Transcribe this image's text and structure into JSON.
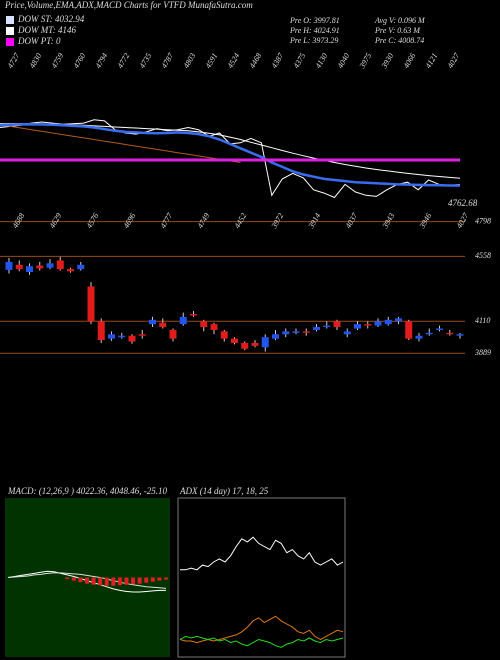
{
  "header": {
    "title": "Price,Volume,EMA,ADX,MACD Charts for VTFD MunafaSutra.com",
    "legend": [
      {
        "text": "DOW ST: 4032.94",
        "color": "#d8e4ff"
      },
      {
        "text": "DOW MT: 4146",
        "color": "#ffffff"
      },
      {
        "text": "DOW PT: 0",
        "color": "#ff00ff"
      }
    ],
    "stats": [
      "Pre O: 3997.81",
      "Avg V: 0.096 M",
      "Pre H: 4024.91",
      "Pre V: 0.63 M",
      "Pre L: 3973.29",
      "Pre C: 4008.74"
    ]
  },
  "chart_data": [
    {
      "type": "line",
      "ylim": [
        3720,
        5320
      ],
      "annotations": [
        "4727",
        "4830",
        "4759",
        "4760",
        "4794",
        "4772",
        "4735",
        "4787",
        "4803",
        "4591",
        "4524",
        "4468",
        "4387",
        "4375",
        "4130",
        "4040",
        "3975",
        "3930",
        "4066",
        "4121",
        "4027"
      ],
      "label": "4762.68",
      "hline": {
        "value": 4223,
        "color": "#e020e0"
      },
      "series": [
        {
          "color": "#ffffff",
          "values": [
            4520,
            4530,
            4540,
            4560,
            4570,
            4560,
            4550,
            4555,
            4560,
            4590,
            4580,
            4500,
            4470,
            4460,
            4480,
            4510,
            4490,
            4500,
            4520,
            4500,
            4440,
            4470,
            4370,
            4380,
            4420,
            4380,
            3900,
            4050,
            4100,
            4060,
            3950,
            3920,
            3880,
            4000,
            3930,
            3900,
            3890,
            3950,
            4000,
            4020,
            3950,
            4040,
            4000,
            3990,
            4000
          ]
        },
        {
          "color": "#ffffff",
          "values": [
            4555,
            4556,
            4556,
            4555,
            4553,
            4550,
            4547,
            4544,
            4540,
            4535,
            4530,
            4525,
            4520,
            4515,
            4510,
            4505,
            4500,
            4495,
            4490,
            4480,
            4468,
            4452,
            4432,
            4410,
            4385,
            4360,
            4335,
            4310,
            4285,
            4262,
            4240,
            4220,
            4200,
            4182,
            4166,
            4150,
            4136,
            4124,
            4112,
            4100,
            4090,
            4080,
            4072,
            4064,
            4056
          ]
        },
        {
          "color": "#b05a20",
          "values": [
            4543,
            4530,
            4515,
            4500,
            4485,
            4470,
            4455,
            4440,
            4425,
            4410,
            4395,
            4380,
            4365,
            4350,
            4335,
            4320,
            4305,
            4290,
            4275,
            4260,
            4245,
            4230,
            4215,
            4200,
            null,
            null,
            null,
            null,
            null,
            null,
            null,
            null,
            null,
            null,
            null,
            null,
            null,
            null,
            null,
            null,
            null,
            null,
            null,
            null,
            null
          ]
        },
        {
          "color": "#3a6cf0",
          "values": [
            4540,
            4545,
            4548,
            4550,
            4548,
            4545,
            4540,
            4535,
            4530,
            4520,
            4505,
            4490,
            4480,
            4475,
            4470,
            4468,
            4470,
            4475,
            4470,
            4460,
            4440,
            4410,
            4370,
            4330,
            4290,
            4250,
            4200,
            4160,
            4120,
            4090,
            4070,
            4050,
            4040,
            4030,
            4020,
            4015,
            4010,
            4005,
            4000,
            3998,
            3995,
            3993,
            3992,
            3990,
            3990
          ]
        }
      ]
    },
    {
      "type": "candlestick",
      "ylim": [
        3870,
        4830
      ],
      "up_color": "#2255ee",
      "down_color": "#e21b1b",
      "level_color": "#9a4a18",
      "annotations": [
        "4688",
        "4629",
        "4576",
        "4696",
        "4777",
        "4749",
        "4452",
        "3972",
        "3914",
        "4037",
        "3943",
        "3946",
        "4027"
      ],
      "yticks": [
        4798,
        4558,
        4110,
        3889
      ],
      "open": [
        4465,
        4500,
        4450,
        4495,
        4480,
        4530,
        4470,
        4470,
        4350,
        4110,
        3990,
        4000,
        4010,
        4020,
        4090,
        4100,
        4050,
        4090,
        4160,
        4110,
        4090,
        4040,
        3990,
        3960,
        3960,
        3930,
        3990,
        4020,
        4030,
        4040,
        4050,
        4070,
        4110,
        4020,
        4060,
        4090,
        4080,
        4090,
        4110,
        4110,
        3990,
        4020,
        4050,
        4030,
        4010
      ],
      "high": [
        4548,
        4530,
        4510,
        4520,
        4540,
        4555,
        4480,
        4520,
        4380,
        4130,
        4040,
        4030,
        4020,
        4050,
        4140,
        4130,
        4060,
        4170,
        4180,
        4120,
        4100,
        4050,
        4000,
        3970,
        3980,
        4020,
        4050,
        4060,
        4060,
        4060,
        4090,
        4110,
        4120,
        4060,
        4110,
        4110,
        4130,
        4140,
        4140,
        4120,
        4030,
        4060,
        4080,
        4050,
        4030
      ],
      "low": [
        4440,
        4455,
        4430,
        4460,
        4470,
        4460,
        4445,
        4460,
        4090,
        3960,
        3975,
        3990,
        3955,
        3990,
        4070,
        4060,
        3970,
        4080,
        4140,
        4040,
        4020,
        3970,
        3950,
        3910,
        3930,
        3900,
        3980,
        4000,
        4020,
        4010,
        4040,
        4060,
        4050,
        4000,
        4050,
        4060,
        4070,
        4080,
        4090,
        3980,
        3970,
        4010,
        4040,
        4010,
        3990
      ],
      "close": [
        4520,
        4470,
        4490,
        4475,
        4510,
        4470,
        4455,
        4500,
        4110,
        3980,
        4020,
        4010,
        3970,
        4010,
        4120,
        4070,
        3990,
        4140,
        4150,
        4070,
        4050,
        3990,
        3960,
        3920,
        3940,
        4000,
        4020,
        4040,
        4040,
        4030,
        4070,
        4080,
        4070,
        4040,
        4090,
        4080,
        4110,
        4120,
        4130,
        3990,
        4010,
        4030,
        4060,
        4020,
        4020
      ]
    },
    {
      "type": "line",
      "title": "MACD: (12,26,9 ) 4022.36, 4048.46, -25.10",
      "ylim": [
        -150,
        150
      ],
      "bar_color": "#e02020",
      "bars": [
        0,
        0,
        0,
        0,
        0,
        0,
        0,
        0,
        0,
        -3,
        -6,
        -9,
        -12,
        -14,
        -15,
        -16,
        -16,
        -15,
        -14,
        -13,
        -12,
        -10,
        -8,
        -6,
        -4
      ],
      "series": [
        {
          "color": "#ffffff",
          "values": [
            0,
            2,
            4,
            6,
            8,
            10,
            12,
            11,
            8,
            5,
            2,
            -2,
            -6,
            -10,
            -14,
            -18,
            -22,
            -25,
            -27,
            -28,
            -28,
            -27,
            -26,
            -25,
            -25
          ]
        },
        {
          "color": "#dddddd",
          "values": [
            0,
            1,
            2,
            3,
            5,
            6,
            8,
            9,
            9,
            8,
            7,
            6,
            4,
            2,
            0,
            -3,
            -6,
            -9,
            -12,
            -14,
            -16,
            -18,
            -19,
            -20,
            -21
          ]
        }
      ]
    },
    {
      "type": "line",
      "title": "ADX (14 day) 17, 18, 25",
      "ylim": [
        0,
        100
      ],
      "series": [
        {
          "color": "#ffffff",
          "values": [
            55,
            55,
            56,
            55,
            58,
            57,
            60,
            62,
            60,
            64,
            70,
            75,
            73,
            76,
            72,
            70,
            68,
            74,
            72,
            66,
            68,
            64,
            62,
            66,
            60,
            58,
            60,
            62,
            58,
            60
          ]
        },
        {
          "color": "#e07a10",
          "values": [
            10,
            9,
            9,
            8,
            9,
            10,
            9,
            10,
            11,
            12,
            13,
            15,
            18,
            22,
            24,
            21,
            23,
            25,
            22,
            20,
            18,
            15,
            14,
            16,
            12,
            10,
            12,
            14,
            16,
            15
          ]
        },
        {
          "color": "#20e020",
          "values": [
            10,
            12,
            11,
            12,
            11,
            10,
            11,
            9,
            10,
            8,
            9,
            7,
            6,
            8,
            10,
            9,
            8,
            6,
            5,
            7,
            8,
            10,
            9,
            11,
            9,
            8,
            10,
            9,
            10,
            11
          ]
        }
      ]
    }
  ]
}
